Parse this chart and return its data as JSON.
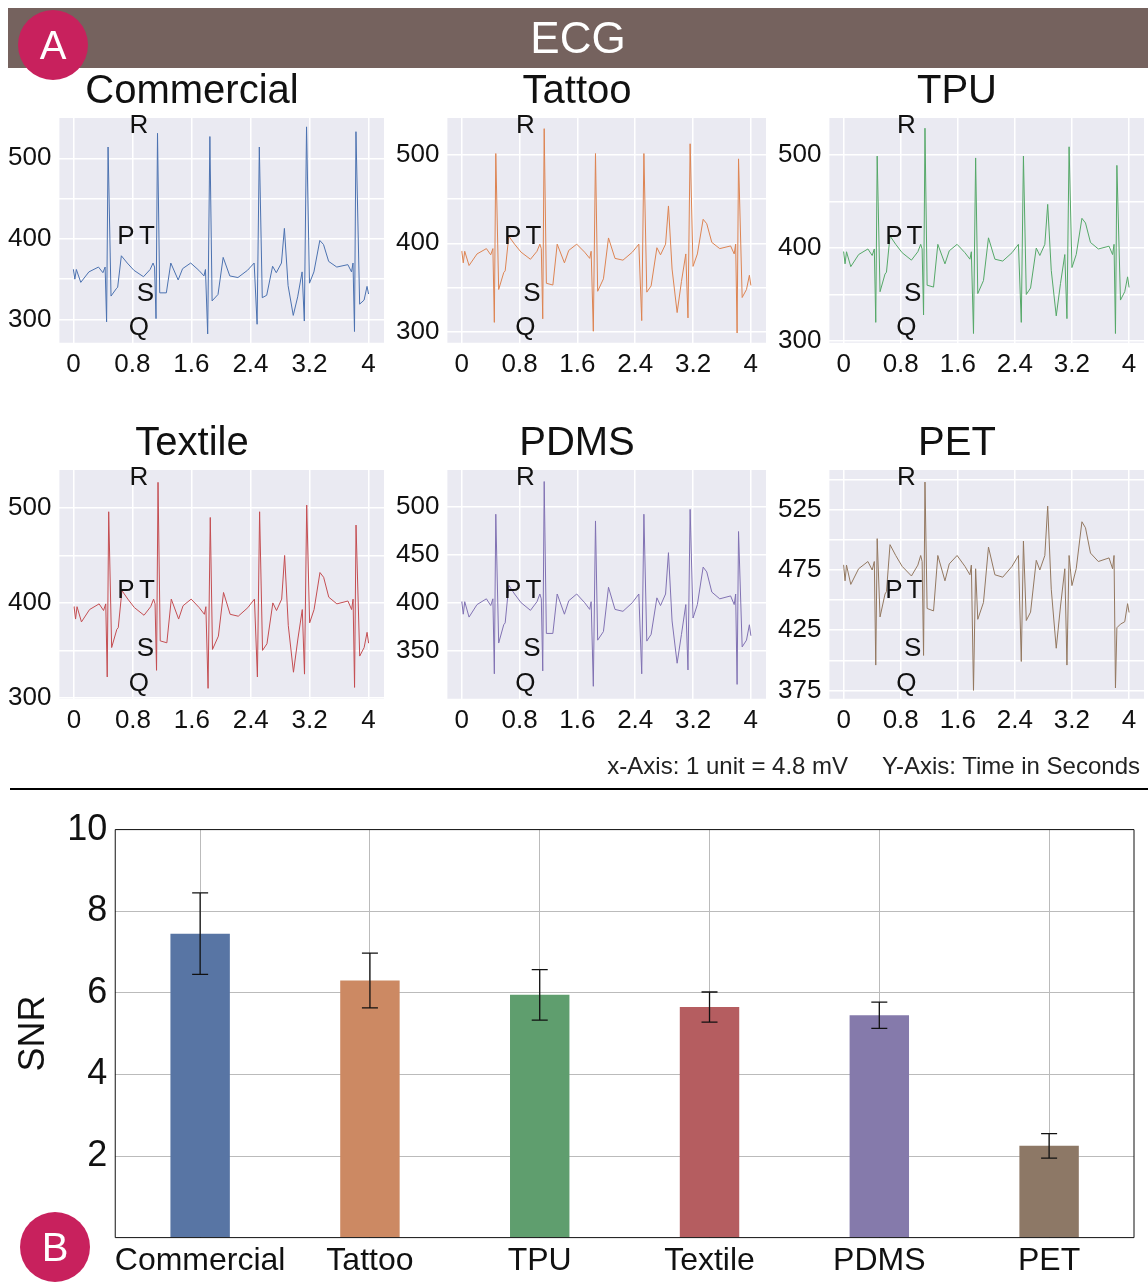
{
  "chart_data": [
    {
      "type": "line",
      "title": "Commercial",
      "annotations": [
        "ECG",
        "A",
        "R",
        "P",
        "T",
        "S",
        "Q"
      ],
      "x": [
        0,
        0.02,
        0.04,
        0.1,
        0.21,
        0.34,
        0.4,
        0.43,
        0.45,
        0.47,
        0.51,
        0.58,
        0.6,
        0.65,
        0.73,
        0.82,
        0.95,
        1.04,
        1.08,
        1.1,
        1.12,
        1.14,
        1.17,
        1.26,
        1.32,
        1.42,
        1.48,
        1.59,
        1.7,
        1.77,
        1.79,
        1.82,
        1.85,
        1.88,
        1.96,
        2.03,
        2.12,
        2.23,
        2.36,
        2.45,
        2.49,
        2.52,
        2.56,
        2.62,
        2.7,
        2.75,
        2.82,
        2.86,
        2.91,
        2.98,
        3.04,
        3.1,
        3.13,
        3.16,
        3.2,
        3.26,
        3.34,
        3.39,
        3.46,
        3.57,
        3.72,
        3.77,
        3.79,
        3.81,
        3.83,
        3.88,
        3.94,
        3.98,
        4.0
      ],
      "series": [
        {
          "color": "#4c72b0",
          "values": [
            362,
            350,
            362,
            346,
            359,
            365,
            358,
            365,
            297,
            514,
            329,
            338,
            340,
            379,
            370,
            361,
            353,
            362,
            370,
            365,
            301,
            531,
            333,
            333,
            370,
            349,
            363,
            370,
            361,
            354,
            362,
            282,
            527,
            323,
            331,
            377,
            354,
            352,
            361,
            370,
            294,
            514,
            327,
            330,
            366,
            358,
            370,
            413,
            342,
            305,
            328,
            359,
            298,
            539,
            345,
            359,
            398,
            393,
            372,
            365,
            368,
            359,
            370,
            285,
            533,
            319,
            324,
            341,
            332
          ]
        }
      ],
      "xlim": [
        -0.19,
        4.21
      ],
      "xticks": [
        0,
        0.8,
        1.6,
        2.4,
        3.2,
        4
      ],
      "ylim": [
        271,
        550
      ],
      "yticks": [
        300,
        {
          "value": 350,
          "label": null
        },
        400,
        {
          "value": 450,
          "label": null
        },
        500
      ],
      "grid": true
    },
    {
      "type": "line",
      "title": "Tattoo",
      "annotations": [
        "R",
        "P",
        "T",
        "S",
        "Q"
      ],
      "x": [
        0,
        0.02,
        0.04,
        0.1,
        0.21,
        0.34,
        0.4,
        0.43,
        0.45,
        0.47,
        0.51,
        0.58,
        0.6,
        0.65,
        0.73,
        0.82,
        0.95,
        1.04,
        1.08,
        1.1,
        1.12,
        1.14,
        1.17,
        1.26,
        1.32,
        1.42,
        1.48,
        1.59,
        1.7,
        1.77,
        1.79,
        1.82,
        1.85,
        1.88,
        1.96,
        2.03,
        2.12,
        2.23,
        2.36,
        2.45,
        2.49,
        2.52,
        2.56,
        2.62,
        2.7,
        2.75,
        2.82,
        2.86,
        2.91,
        2.98,
        3.04,
        3.1,
        3.13,
        3.16,
        3.2,
        3.26,
        3.34,
        3.39,
        3.46,
        3.57,
        3.72,
        3.77,
        3.79,
        3.81,
        3.83,
        3.88,
        3.94,
        3.98,
        4.0
      ],
      "series": [
        {
          "color": "#dd8452",
          "values": [
            391,
            378,
            391,
            375,
            388,
            394,
            387,
            394,
            311,
            501,
            348,
            367,
            369,
            408,
            399,
            390,
            382,
            391,
            399,
            394,
            315,
            529,
            355,
            353,
            399,
            378,
            392,
            399,
            390,
            383,
            391,
            301,
            501,
            346,
            360,
            406,
            383,
            381,
            390,
            399,
            313,
            501,
            345,
            352,
            395,
            387,
            399,
            442,
            371,
            322,
            357,
            388,
            316,
            512,
            374,
            388,
            427,
            422,
            401,
            394,
            397,
            388,
            399,
            299,
            495,
            339,
            348,
            364,
            353
          ]
        }
      ],
      "xlim": [
        -0.2,
        4.21
      ],
      "xticks": [
        0,
        0.8,
        1.6,
        2.4,
        3.2,
        4
      ],
      "ylim": [
        288,
        541
      ],
      "yticks": [
        300,
        {
          "value": 350,
          "label": null
        },
        400,
        {
          "value": 450,
          "label": null
        },
        500
      ],
      "grid": true
    },
    {
      "type": "line",
      "title": "TPU",
      "annotations": [
        "R",
        "P",
        "T",
        "S",
        "Q"
      ],
      "x": [
        0,
        0.02,
        0.04,
        0.1,
        0.21,
        0.34,
        0.4,
        0.43,
        0.45,
        0.47,
        0.51,
        0.58,
        0.6,
        0.65,
        0.73,
        0.82,
        0.95,
        1.04,
        1.08,
        1.1,
        1.12,
        1.14,
        1.17,
        1.26,
        1.32,
        1.42,
        1.48,
        1.59,
        1.7,
        1.77,
        1.79,
        1.82,
        1.85,
        1.88,
        1.96,
        2.03,
        2.12,
        2.23,
        2.36,
        2.45,
        2.49,
        2.52,
        2.56,
        2.62,
        2.7,
        2.75,
        2.82,
        2.86,
        2.91,
        2.98,
        3.04,
        3.1,
        3.13,
        3.16,
        3.2,
        3.26,
        3.34,
        3.39,
        3.46,
        3.57,
        3.72,
        3.77,
        3.79,
        3.81,
        3.83,
        3.88,
        3.94,
        3.98,
        4.0
      ],
      "series": [
        {
          "color": "#55a868",
          "values": [
            396,
            383,
            396,
            380,
            393,
            399,
            392,
            399,
            320,
            499,
            353,
            372,
            374,
            413,
            404,
            395,
            387,
            396,
            404,
            399,
            328,
            529,
            360,
            358,
            404,
            383,
            397,
            404,
            395,
            388,
            396,
            308,
            497,
            351,
            365,
            411,
            388,
            386,
            395,
            404,
            320,
            499,
            350,
            357,
            400,
            392,
            404,
            447,
            376,
            327,
            362,
            393,
            324,
            509,
            379,
            393,
            432,
            427,
            406,
            399,
            402,
            393,
            404,
            308,
            489,
            344,
            353,
            369,
            358
          ]
        }
      ],
      "xlim": [
        -0.2,
        4.21
      ],
      "xticks": [
        0,
        0.8,
        1.6,
        2.4,
        3.2,
        4
      ],
      "ylim": [
        298,
        540
      ],
      "yticks": [
        300,
        {
          "value": 350,
          "label": null
        },
        400,
        {
          "value": 450,
          "label": null
        },
        500
      ],
      "grid": true
    },
    {
      "type": "line",
      "title": "Textile",
      "annotations": [
        "R",
        "P",
        "T",
        "S",
        "Q"
      ],
      "x": [
        0,
        0.02,
        0.04,
        0.1,
        0.21,
        0.34,
        0.4,
        0.43,
        0.45,
        0.47,
        0.51,
        0.58,
        0.6,
        0.65,
        0.73,
        0.82,
        0.95,
        1.04,
        1.08,
        1.1,
        1.12,
        1.14,
        1.17,
        1.26,
        1.32,
        1.42,
        1.48,
        1.59,
        1.7,
        1.77,
        1.79,
        1.82,
        1.85,
        1.88,
        1.96,
        2.03,
        2.12,
        2.23,
        2.36,
        2.45,
        2.49,
        2.52,
        2.56,
        2.62,
        2.7,
        2.75,
        2.82,
        2.86,
        2.91,
        2.98,
        3.04,
        3.1,
        3.13,
        3.16,
        3.2,
        3.26,
        3.34,
        3.39,
        3.46,
        3.57,
        3.72,
        3.77,
        3.79,
        3.81,
        3.83,
        3.88,
        3.94,
        3.98,
        4.0
      ],
      "series": [
        {
          "color": "#c44e52",
          "values": [
            396,
            383,
            396,
            380,
            393,
            399,
            392,
            399,
            322,
            496,
            353,
            372,
            374,
            413,
            404,
            395,
            387,
            396,
            404,
            399,
            329,
            527,
            360,
            358,
            404,
            383,
            397,
            404,
            395,
            388,
            396,
            310,
            490,
            351,
            365,
            411,
            388,
            386,
            395,
            404,
            322,
            496,
            350,
            357,
            400,
            392,
            404,
            450,
            376,
            327,
            362,
            393,
            325,
            503,
            379,
            393,
            432,
            427,
            406,
            399,
            402,
            393,
            404,
            311,
            482,
            344,
            353,
            369,
            358
          ]
        }
      ],
      "xlim": [
        -0.2,
        4.21
      ],
      "xticks": [
        0,
        0.8,
        1.6,
        2.4,
        3.2,
        4
      ],
      "ylim": [
        299,
        540
      ],
      "yticks": [
        300,
        {
          "value": 350,
          "label": null
        },
        400,
        {
          "value": 450,
          "label": null
        },
        500
      ],
      "grid": true
    },
    {
      "type": "line",
      "title": "PDMS",
      "annotations": [
        "R",
        "P",
        "T",
        "S",
        "Q"
      ],
      "x": [
        0,
        0.02,
        0.04,
        0.1,
        0.21,
        0.34,
        0.4,
        0.43,
        0.45,
        0.47,
        0.51,
        0.58,
        0.6,
        0.65,
        0.73,
        0.82,
        0.95,
        1.04,
        1.08,
        1.1,
        1.12,
        1.14,
        1.17,
        1.26,
        1.32,
        1.42,
        1.48,
        1.59,
        1.7,
        1.77,
        1.79,
        1.82,
        1.85,
        1.88,
        1.96,
        2.03,
        2.12,
        2.23,
        2.36,
        2.45,
        2.49,
        2.52,
        2.56,
        2.62,
        2.7,
        2.75,
        2.82,
        2.86,
        2.91,
        2.98,
        3.04,
        3.1,
        3.13,
        3.16,
        3.2,
        3.26,
        3.34,
        3.39,
        3.46,
        3.57,
        3.72,
        3.77,
        3.79,
        3.81,
        3.83,
        3.88,
        3.94,
        3.98,
        4.0
      ],
      "series": [
        {
          "color": "#8172b3",
          "values": [
            401,
            388,
            401,
            385,
            398,
            404,
            397,
            404,
            326,
            492,
            358,
            377,
            379,
            418,
            409,
            400,
            392,
            401,
            409,
            404,
            329,
            526,
            368,
            368,
            409,
            388,
            402,
            409,
            400,
            393,
            401,
            313,
            485,
            361,
            370,
            416,
            393,
            391,
            400,
            409,
            326,
            492,
            360,
            367,
            405,
            397,
            409,
            452,
            381,
            337,
            367,
            398,
            330,
            497,
            384,
            398,
            437,
            432,
            411,
            404,
            407,
            398,
            409,
            315,
            474,
            354,
            361,
            377,
            366
          ]
        }
      ],
      "xlim": [
        -0.2,
        4.21
      ],
      "xticks": [
        0,
        0.8,
        1.6,
        2.4,
        3.2,
        4
      ],
      "ylim": [
        300,
        538
      ],
      "yticks": [
        350,
        400,
        450,
        500
      ],
      "grid": true
    },
    {
      "type": "line",
      "title": "PET",
      "annotations": [
        "R",
        "P",
        "T",
        "S",
        "Q",
        "x-Axis: 1 unit = 4.8 mV",
        "Y-Axis: Time in Seconds"
      ],
      "x": [
        0,
        0.02,
        0.04,
        0.1,
        0.21,
        0.34,
        0.4,
        0.43,
        0.45,
        0.47,
        0.51,
        0.58,
        0.6,
        0.65,
        0.73,
        0.82,
        0.95,
        1.04,
        1.08,
        1.1,
        1.12,
        1.14,
        1.17,
        1.26,
        1.32,
        1.42,
        1.48,
        1.59,
        1.7,
        1.77,
        1.79,
        1.82,
        1.85,
        1.88,
        1.96,
        2.03,
        2.12,
        2.23,
        2.36,
        2.45,
        2.49,
        2.52,
        2.56,
        2.62,
        2.7,
        2.75,
        2.82,
        2.86,
        2.91,
        2.98,
        3.04,
        3.1,
        3.13,
        3.16,
        3.2,
        3.26,
        3.34,
        3.39,
        3.46,
        3.57,
        3.72,
        3.77,
        3.79,
        3.81,
        3.83,
        3.88,
        3.94,
        3.98,
        4.0
      ],
      "series": [
        {
          "color": "#937860",
          "values": [
            479,
            466,
            479,
            463,
            476,
            482,
            475,
            482,
            396,
            501,
            436,
            455,
            457,
            496,
            487,
            478,
            470,
            479,
            487,
            482,
            404,
            548,
            443,
            441,
            487,
            466,
            480,
            487,
            478,
            471,
            479,
            375,
            476,
            434,
            448,
            494,
            471,
            469,
            478,
            487,
            399,
            499,
            433,
            440,
            483,
            475,
            487,
            528,
            459,
            410,
            445,
            476,
            396,
            487,
            462,
            476,
            515,
            510,
            489,
            482,
            485,
            476,
            487,
            377,
            427,
            430,
            432,
            447,
            440
          ]
        }
      ],
      "xlim": [
        -0.2,
        4.21
      ],
      "xticks": [
        0,
        0.8,
        1.6,
        2.4,
        3.2,
        4
      ],
      "ylim": [
        368,
        558
      ],
      "yticks": [
        375,
        {
          "value": 400,
          "label": null
        },
        425,
        {
          "value": 450,
          "label": null
        },
        475,
        {
          "value": 500,
          "label": null
        },
        525,
        {
          "value": 550,
          "label": null
        }
      ],
      "grid": true
    },
    {
      "type": "bar",
      "ylabel": "SNR",
      "annotations": [
        "B"
      ],
      "categories": [
        "Commercial",
        "Tattoo",
        "TPU",
        "Textile",
        "PDMS",
        "PET"
      ],
      "values": [
        7.45,
        6.3,
        5.95,
        5.65,
        5.45,
        2.25
      ],
      "colors": [
        "#5875a4",
        "#cc8963",
        "#5f9e6e",
        "#b55d60",
        "#857aab",
        "#8d7866"
      ],
      "errors": [
        1.0,
        0.67,
        0.62,
        0.37,
        0.32,
        0.3
      ],
      "ylim": [
        0,
        10
      ],
      "yticks": [
        2,
        4,
        6,
        8,
        10
      ],
      "grid": true
    }
  ]
}
